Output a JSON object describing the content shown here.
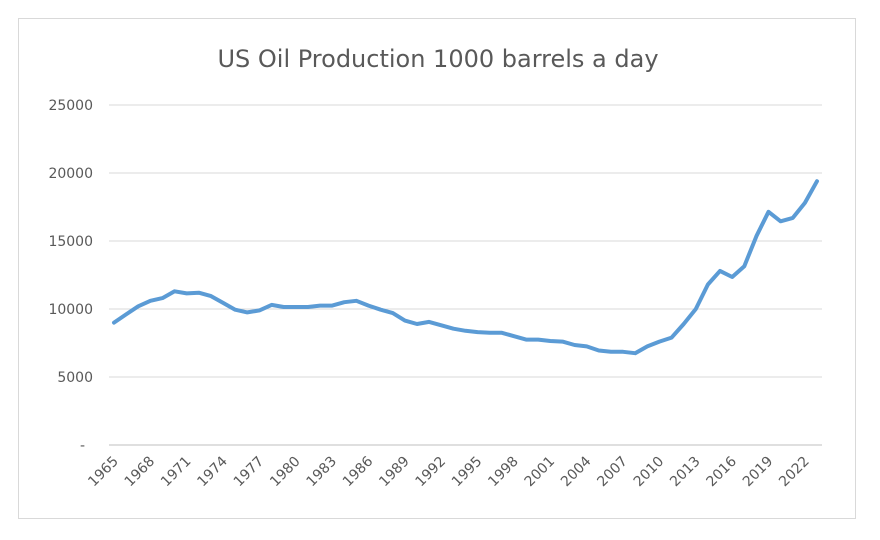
{
  "colors": {
    "series": "#5b9bd5",
    "grid": "#d9d9d9",
    "text": "#595959"
  },
  "chart_data": {
    "type": "line",
    "title": "US Oil Production 1000 barrels a day",
    "xlabel": "",
    "ylabel": "",
    "ylim": [
      0,
      25000
    ],
    "yticks": [
      {
        "value": 0,
        "label": "-"
      },
      {
        "value": 5000,
        "label": "5000"
      },
      {
        "value": 10000,
        "label": "10000"
      },
      {
        "value": 15000,
        "label": "15000"
      },
      {
        "value": 20000,
        "label": "20000"
      },
      {
        "value": 25000,
        "label": "25000"
      }
    ],
    "xtick_labels": [
      "1965",
      "1968",
      "1971",
      "1974",
      "1977",
      "1980",
      "1983",
      "1986",
      "1989",
      "1992",
      "1995",
      "1998",
      "2001",
      "2004",
      "2007",
      "2010",
      "2013",
      "2016",
      "2019",
      "2022"
    ],
    "legend": "none",
    "grid": true,
    "series": [
      {
        "name": "US Oil Production",
        "x": [
          1965,
          1966,
          1967,
          1968,
          1969,
          1970,
          1971,
          1972,
          1973,
          1974,
          1975,
          1976,
          1977,
          1978,
          1979,
          1980,
          1981,
          1982,
          1983,
          1984,
          1985,
          1986,
          1987,
          1988,
          1989,
          1990,
          1991,
          1992,
          1993,
          1994,
          1995,
          1996,
          1997,
          1998,
          1999,
          2000,
          2001,
          2002,
          2003,
          2004,
          2005,
          2006,
          2007,
          2008,
          2009,
          2010,
          2011,
          2012,
          2013,
          2014,
          2015,
          2016,
          2017,
          2018,
          2019,
          2020,
          2021,
          2022,
          2023
        ],
        "values": [
          9000,
          9600,
          10200,
          10600,
          10800,
          11300,
          11150,
          11200,
          10950,
          10450,
          9950,
          9750,
          9900,
          10300,
          10150,
          10150,
          10150,
          10250,
          10250,
          10500,
          10600,
          10250,
          9950,
          9700,
          9150,
          8900,
          9050,
          8800,
          8550,
          8400,
          8300,
          8250,
          8250,
          8000,
          7750,
          7750,
          7650,
          7600,
          7350,
          7250,
          6950,
          6850,
          6850,
          6750,
          7250,
          7600,
          7900,
          8900,
          10000,
          11800,
          12800,
          12350,
          13150,
          15350,
          17150,
          16450,
          16700,
          17800,
          19400
        ]
      }
    ]
  }
}
